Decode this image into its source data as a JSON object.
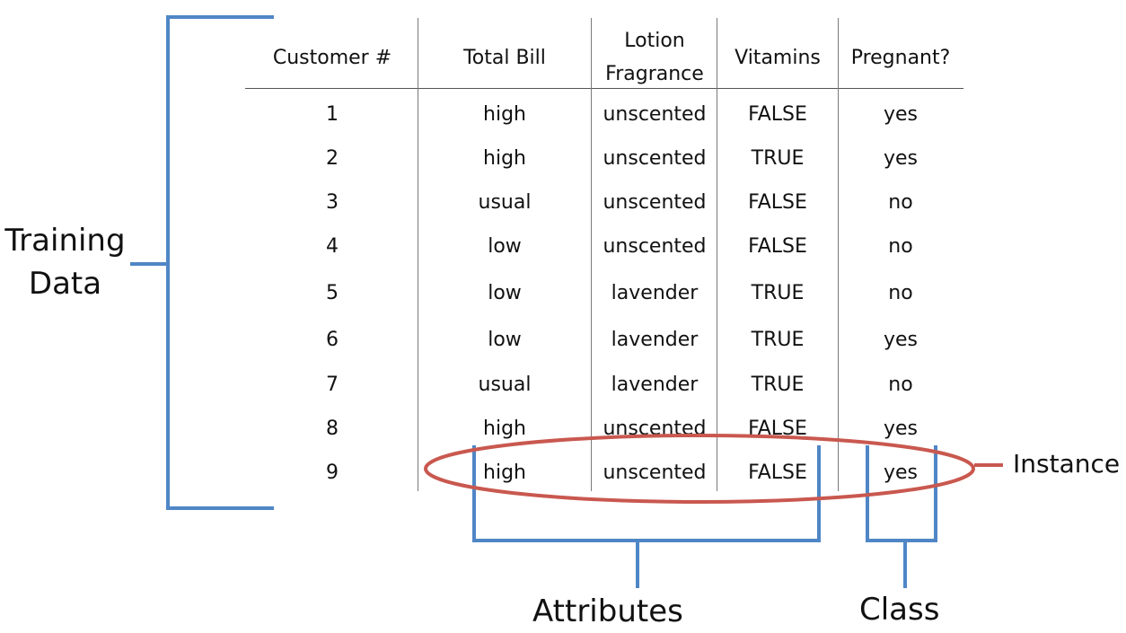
{
  "table": {
    "columns": [
      "Customer #",
      "Total Bill",
      "Lotion\nFragrance",
      "Vitamins",
      "Pregnant?"
    ],
    "rows": [
      [
        "1",
        "high",
        "unscented",
        "FALSE",
        "yes"
      ],
      [
        "2",
        "high",
        "unscented",
        "TRUE",
        "yes"
      ],
      [
        "3",
        "usual",
        "unscented",
        "FALSE",
        "no"
      ],
      [
        "4",
        "low",
        "unscented",
        "FALSE",
        "no"
      ],
      [
        "5",
        "low",
        "lavender",
        "TRUE",
        "no"
      ],
      [
        "6",
        "low",
        "lavender",
        "TRUE",
        "yes"
      ],
      [
        "7",
        "usual",
        "lavender",
        "TRUE",
        "no"
      ],
      [
        "8",
        "high",
        "unscented",
        "FALSE",
        "yes"
      ],
      [
        "9",
        "high",
        "unscented",
        "FALSE",
        "yes"
      ]
    ]
  },
  "labels": {
    "training_data": "Training\nData",
    "instance": "Instance",
    "attributes": "Attributes",
    "class": "Class"
  },
  "colors": {
    "bracket": "#4f86c6",
    "ellipse": "#c9584f",
    "text": "#111111"
  }
}
